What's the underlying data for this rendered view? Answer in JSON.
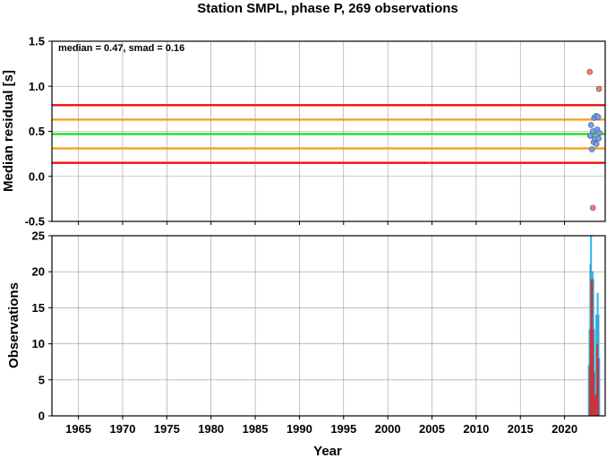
{
  "chart_data": [
    {
      "type": "scatter",
      "title": "Station SMPL, phase P, 269 observations",
      "ylabel": "Median residual [s]",
      "xlim": [
        1962,
        2024.6
      ],
      "ylim": [
        -0.5,
        1.5
      ],
      "x_ticks": [
        1965,
        1970,
        1975,
        1980,
        1985,
        1990,
        1995,
        2000,
        2005,
        2010,
        2015,
        2020
      ],
      "y_ticks": [
        -0.5,
        0.0,
        0.5,
        1.0,
        1.5
      ],
      "y_tick_labels": [
        "-0.5",
        "0.0",
        "0.5",
        "1.0",
        "1.5"
      ],
      "grid": true,
      "annotation": "median = 0.47, smad = 0.16",
      "reference_lines": [
        {
          "y": 0.47,
          "color": "#22dd22"
        },
        {
          "y": 0.31,
          "color": "#f0a020"
        },
        {
          "y": 0.63,
          "color": "#f0a020"
        },
        {
          "y": 0.15,
          "color": "#ee1111"
        },
        {
          "y": 0.79,
          "color": "#ee1111"
        }
      ],
      "series": [
        {
          "color": "#6fa0ff",
          "points": [
            {
              "x": 2022.9,
              "y": 0.45
            },
            {
              "x": 2023.0,
              "y": 0.57
            },
            {
              "x": 2023.1,
              "y": 0.3
            },
            {
              "x": 2023.2,
              "y": 0.5
            },
            {
              "x": 2023.3,
              "y": 0.38
            },
            {
              "x": 2023.35,
              "y": 0.65
            },
            {
              "x": 2023.45,
              "y": 0.42
            },
            {
              "x": 2023.55,
              "y": 0.67
            },
            {
              "x": 2023.6,
              "y": 0.36
            },
            {
              "x": 2023.7,
              "y": 0.52
            },
            {
              "x": 2023.8,
              "y": 0.66
            },
            {
              "x": 2023.85,
              "y": 0.42
            },
            {
              "x": 2023.95,
              "y": 0.48
            }
          ]
        },
        {
          "color": "#ff7b6b",
          "points": [
            {
              "x": 2022.85,
              "y": 1.16
            },
            {
              "x": 2023.2,
              "y": -0.35
            },
            {
              "x": 2023.9,
              "y": 0.97
            }
          ]
        }
      ]
    },
    {
      "type": "bar",
      "xlabel": "Year",
      "ylabel": "Observations",
      "xlim": [
        1962,
        2024.6
      ],
      "ylim": [
        0,
        25
      ],
      "x_ticks": [
        1965,
        1970,
        1975,
        1980,
        1985,
        1990,
        1995,
        2000,
        2005,
        2010,
        2015,
        2020
      ],
      "x_tick_labels": [
        "1965",
        "1970",
        "1975",
        "1980",
        "1985",
        "1990",
        "1995",
        "2000",
        "2005",
        "2010",
        "2015",
        "2020"
      ],
      "y_ticks": [
        0,
        5,
        10,
        15,
        20,
        25
      ],
      "y_tick_labels": [
        "0",
        "5",
        "10",
        "15",
        "20",
        "25"
      ],
      "grid": true,
      "colors": {
        "bar_fill": "#7a6fc0",
        "bar_outline": "#cc3333",
        "step_line": "#22bbee"
      },
      "bars": [
        {
          "x": 2022.75,
          "value": 7
        },
        {
          "x": 2022.83,
          "value": 12
        },
        {
          "x": 2022.92,
          "value": 21
        },
        {
          "x": 2023.0,
          "value": 25
        },
        {
          "x": 2023.08,
          "value": 19
        },
        {
          "x": 2023.17,
          "value": 20
        },
        {
          "x": 2023.25,
          "value": 19
        },
        {
          "x": 2023.33,
          "value": 12
        },
        {
          "x": 2023.42,
          "value": 6
        },
        {
          "x": 2023.5,
          "value": 3
        },
        {
          "x": 2023.58,
          "value": 14
        },
        {
          "x": 2023.67,
          "value": 10
        },
        {
          "x": 2023.75,
          "value": 17
        },
        {
          "x": 2023.83,
          "value": 14
        },
        {
          "x": 2023.92,
          "value": 8
        }
      ]
    }
  ]
}
